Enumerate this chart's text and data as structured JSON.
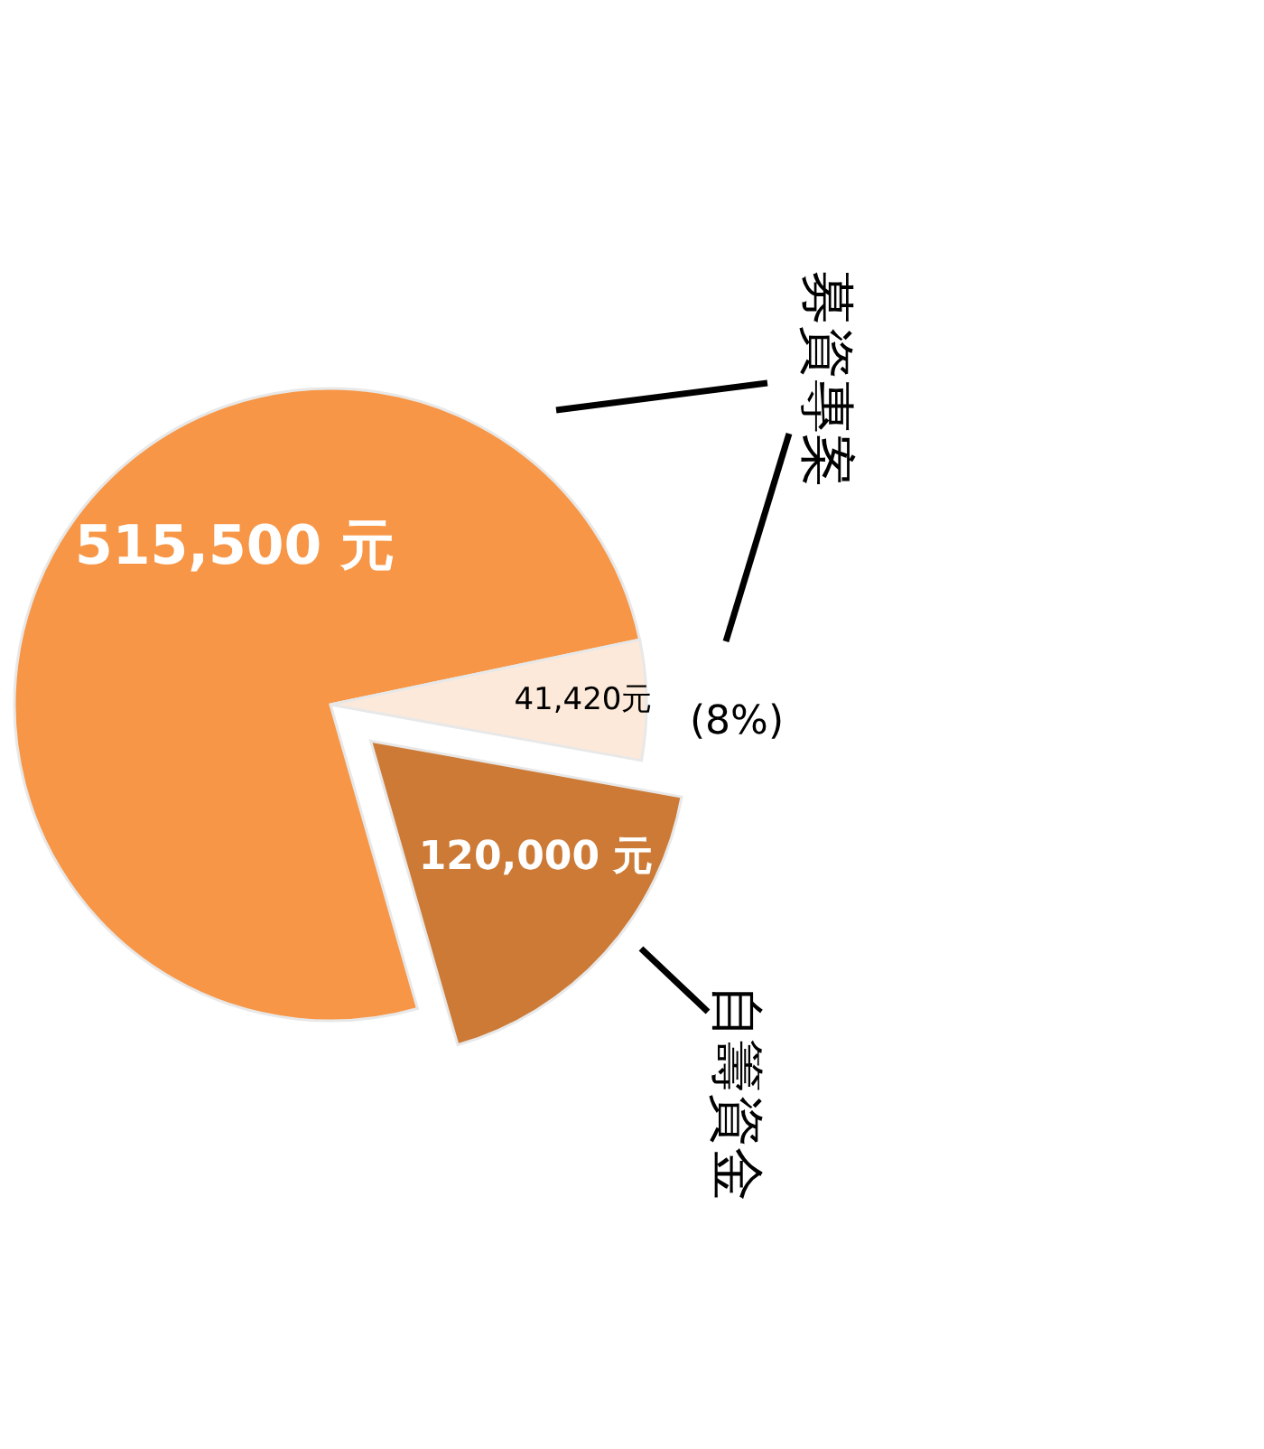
{
  "chart_data": {
    "type": "pie",
    "categories": [
      "募資專案",
      null,
      "自籌資金"
    ],
    "values": [
      515500,
      41420,
      120000
    ],
    "colors": [
      "#f79646",
      "#fde9d9",
      "#cc7a35"
    ],
    "value_labels": [
      "515,500 元",
      "41,420元",
      "120,000 元"
    ],
    "annotations": [
      "(8%)"
    ]
  }
}
